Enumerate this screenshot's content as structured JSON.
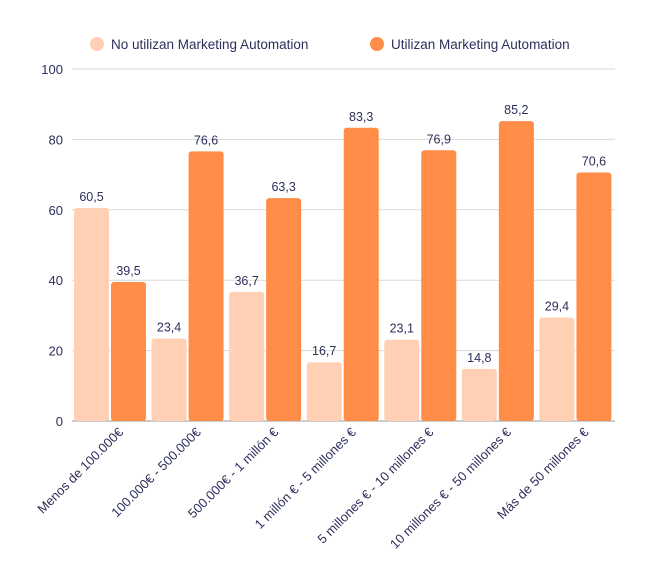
{
  "chart_data": {
    "type": "bar",
    "title": "",
    "xlabel": "",
    "ylabel": "",
    "ylim": [
      0,
      100
    ],
    "yticks": [
      0,
      20,
      40,
      60,
      80,
      100
    ],
    "grid": true,
    "legend_position": "top",
    "categories": [
      "Menos de 100.000€",
      "100.000€ - 500.000€",
      "500.000€ - 1 millón €",
      "1 millón € - 5 millones €",
      "5 millones € - 10 millones €",
      "10 millones € - 50 millones €",
      "Más de 50 millones €"
    ],
    "series": [
      {
        "name": "No utilizan Marketing Automation",
        "color": "#ffd0b4",
        "values": [
          60.5,
          23.4,
          36.7,
          16.7,
          23.1,
          14.8,
          29.4
        ],
        "labels": [
          "60,5",
          "23,4",
          "36,7",
          "16,7",
          "23,1",
          "14,8",
          "29,4"
        ]
      },
      {
        "name": "Utilizan Marketing Automation",
        "color": "#ff8c47",
        "values": [
          39.5,
          76.6,
          63.3,
          83.3,
          76.9,
          85.2,
          70.6
        ],
        "labels": [
          "39,5",
          "76,6",
          "63,3",
          "83,3",
          "76,9",
          "85,2",
          "70,6"
        ]
      }
    ]
  }
}
